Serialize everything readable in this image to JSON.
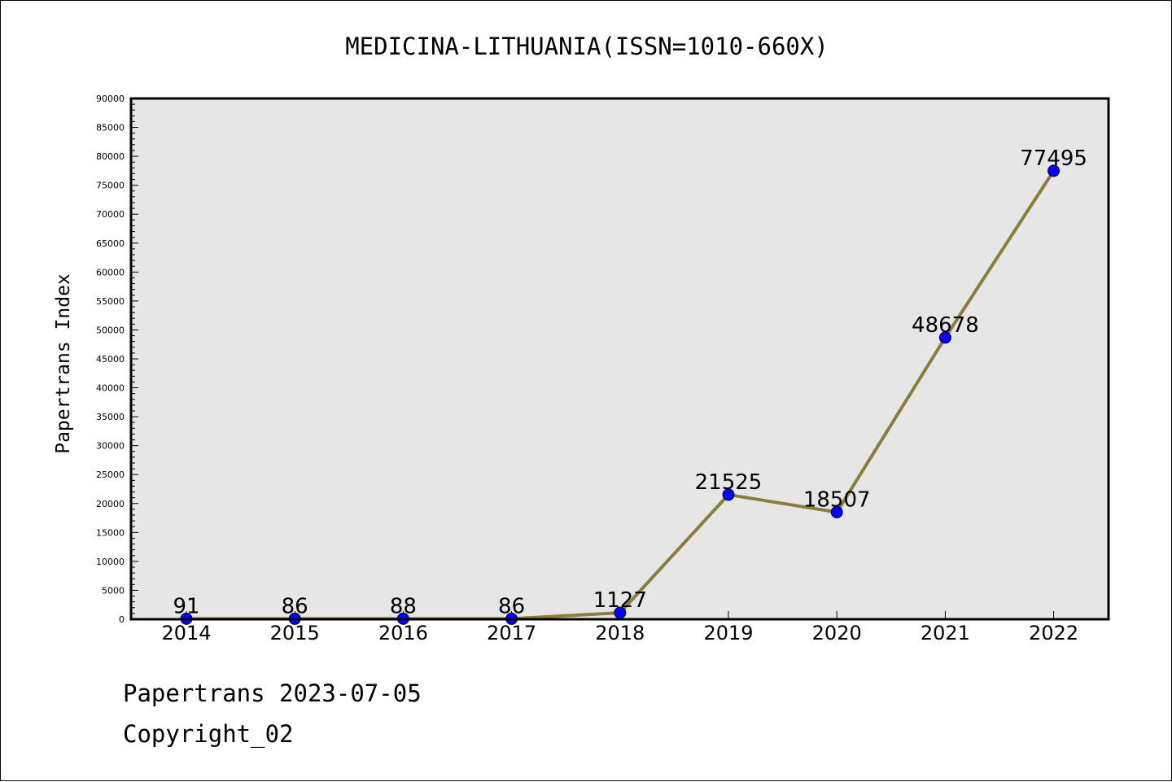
{
  "chart_data": {
    "type": "line",
    "title": "MEDICINA-LITHUANIA(ISSN=1010-660X)",
    "xlabel": "",
    "ylabel": "Papertrans Index",
    "categories": [
      "2014",
      "2015",
      "2016",
      "2017",
      "2018",
      "2019",
      "2020",
      "2021",
      "2022"
    ],
    "series": [
      {
        "values": [
          91,
          86,
          88,
          86,
          1127,
          21525,
          18507,
          48678,
          77495
        ],
        "line_color": "#8B7D3A",
        "marker_color": "#0000FF"
      }
    ],
    "ylim": [
      0,
      90000
    ],
    "ytick_step": 5000,
    "plot_background": "#E6E6E6",
    "grid": false,
    "data_labels": true
  },
  "footer": {
    "source": "Papertrans 2023-07-05",
    "copyright": "Copyright_02"
  }
}
